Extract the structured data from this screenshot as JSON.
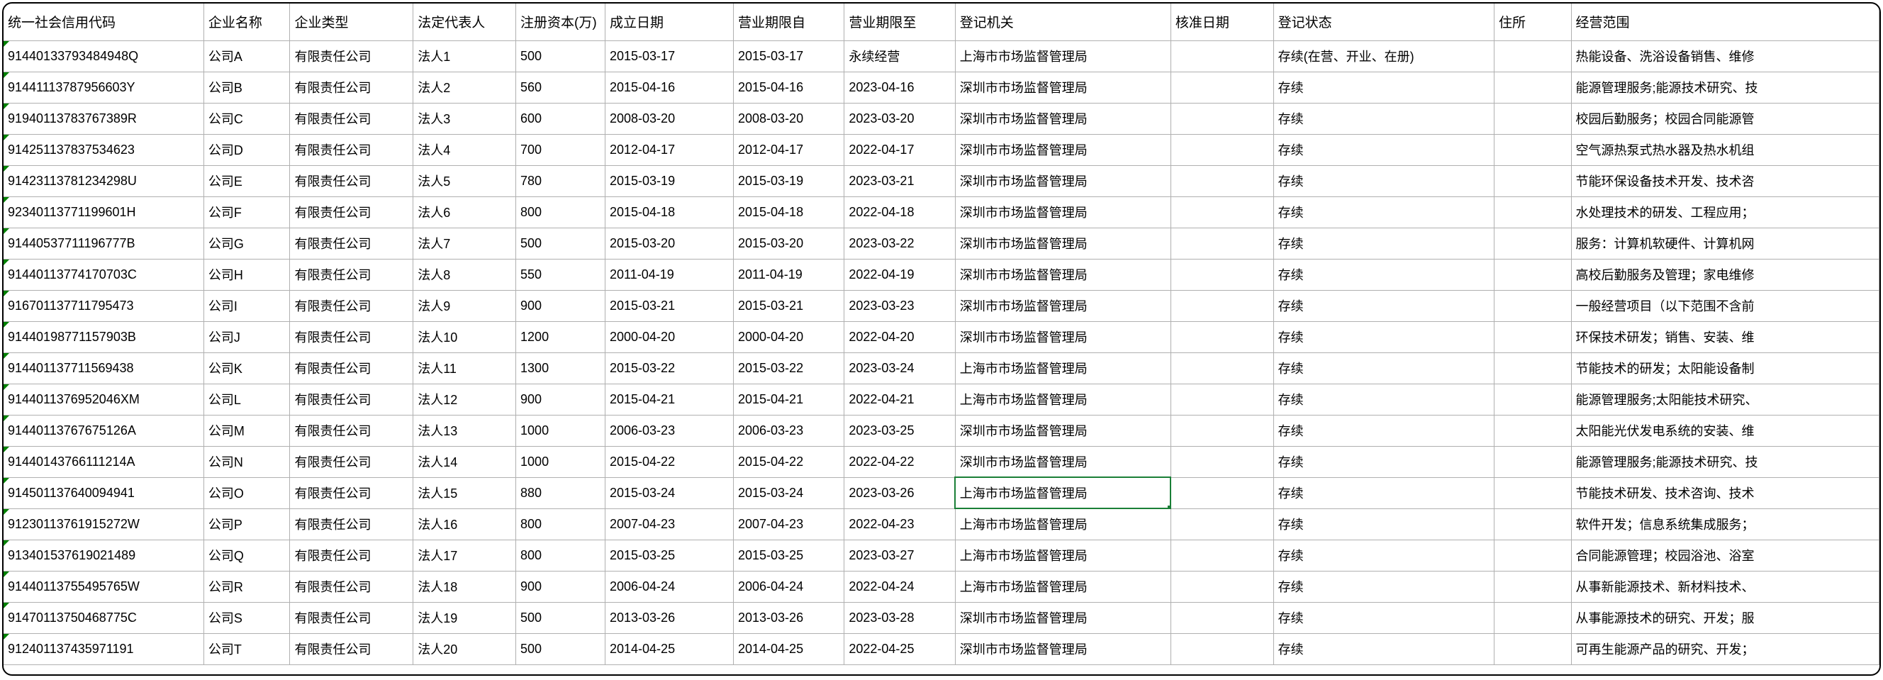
{
  "table": {
    "columns": [
      "统一社会信用代码",
      "企业名称",
      "企业类型",
      "法定代表人",
      "注册资本(万)",
      "成立日期",
      "营业期限自",
      "营业期限至",
      "登记机关",
      "核准日期",
      "登记状态",
      "住所",
      "经营范围"
    ],
    "green_triangle_rows": [
      0,
      1,
      2,
      3,
      4,
      5,
      6,
      7,
      8,
      9,
      10,
      11,
      12,
      13,
      14,
      15,
      16,
      17,
      18,
      19
    ],
    "selected_cell": {
      "row": 14,
      "col": 8
    },
    "rows": [
      [
        "91440133793484948Q",
        "公司A",
        "有限责任公司",
        "法人1",
        "500",
        "2015-03-17",
        "2015-03-17",
        "永续经营",
        "上海市市场监督管理局",
        "",
        "存续(在营、开业、在册)",
        "",
        "热能设备、洗浴设备销售、维修"
      ],
      [
        "91441113787956603Y",
        "公司B",
        "有限责任公司",
        "法人2",
        "560",
        "2015-04-16",
        "2015-04-16",
        "2023-04-16",
        "深圳市市场监督管理局",
        "",
        "存续",
        "",
        "能源管理服务;能源技术研究、技"
      ],
      [
        "91940113783767389R",
        "公司C",
        "有限责任公司",
        "法人3",
        "600",
        "2008-03-20",
        "2008-03-20",
        "2023-03-20",
        "深圳市市场监督管理局",
        "",
        "存续",
        "",
        "校园后勤服务；校园合同能源管"
      ],
      [
        "914251137837534623",
        "公司D",
        "有限责任公司",
        "法人4",
        "700",
        "2012-04-17",
        "2012-04-17",
        "2022-04-17",
        "深圳市市场监督管理局",
        "",
        "存续",
        "",
        "空气源热泵式热水器及热水机组"
      ],
      [
        "91423113781234298U",
        "公司E",
        "有限责任公司",
        "法人5",
        "780",
        "2015-03-19",
        "2015-03-19",
        "2023-03-21",
        "深圳市市场监督管理局",
        "",
        "存续",
        "",
        "节能环保设备技术开发、技术咨"
      ],
      [
        "92340113771199601H",
        "公司F",
        "有限责任公司",
        "法人6",
        "800",
        "2015-04-18",
        "2015-04-18",
        "2022-04-18",
        "深圳市市场监督管理局",
        "",
        "存续",
        "",
        "水处理技术的研发、工程应用；"
      ],
      [
        "91440537711196777B",
        "公司G",
        "有限责任公司",
        "法人7",
        "500",
        "2015-03-20",
        "2015-03-20",
        "2023-03-22",
        "深圳市市场监督管理局",
        "",
        "存续",
        "",
        "服务：计算机软硬件、计算机网"
      ],
      [
        "91440113774170703C",
        "公司H",
        "有限责任公司",
        "法人8",
        "550",
        "2011-04-19",
        "2011-04-19",
        "2022-04-19",
        "深圳市市场监督管理局",
        "",
        "存续",
        "",
        "高校后勤服务及管理；家电维修"
      ],
      [
        "916701137711795473",
        "公司I",
        "有限责任公司",
        "法人9",
        "900",
        "2015-03-21",
        "2015-03-21",
        "2023-03-23",
        "深圳市市场监督管理局",
        "",
        "存续",
        "",
        "一般经营项目（以下范围不含前"
      ],
      [
        "91440198771157903B",
        "公司J",
        "有限责任公司",
        "法人10",
        "1200",
        "2000-04-20",
        "2000-04-20",
        "2022-04-20",
        "深圳市市场监督管理局",
        "",
        "存续",
        "",
        "环保技术研发；销售、安装、维"
      ],
      [
        "914401137711569438",
        "公司K",
        "有限责任公司",
        "法人11",
        "1300",
        "2015-03-22",
        "2015-03-22",
        "2023-03-24",
        "上海市市场监督管理局",
        "",
        "存续",
        "",
        "节能技术的研发；太阳能设备制"
      ],
      [
        "9144011376952046XM",
        "公司L",
        "有限责任公司",
        "法人12",
        "900",
        "2015-04-21",
        "2015-04-21",
        "2022-04-21",
        "上海市市场监督管理局",
        "",
        "存续",
        "",
        "能源管理服务;太阳能技术研究、"
      ],
      [
        "91440113767675126A",
        "公司M",
        "有限责任公司",
        "法人13",
        "1000",
        "2006-03-23",
        "2006-03-23",
        "2023-03-25",
        "深圳市市场监督管理局",
        "",
        "存续",
        "",
        "太阳能光伏发电系统的安装、维"
      ],
      [
        "91440143766111214A",
        "公司N",
        "有限责任公司",
        "法人14",
        "1000",
        "2015-04-22",
        "2015-04-22",
        "2022-04-22",
        "深圳市市场监督管理局",
        "",
        "存续",
        "",
        "能源管理服务;能源技术研究、技"
      ],
      [
        "914501137640094941",
        "公司O",
        "有限责任公司",
        "法人15",
        "880",
        "2015-03-24",
        "2015-03-24",
        "2023-03-26",
        "上海市市场监督管理局",
        "",
        "存续",
        "",
        "节能技术研发、技术咨询、技术"
      ],
      [
        "91230113761915272W",
        "公司P",
        "有限责任公司",
        "法人16",
        "800",
        "2007-04-23",
        "2007-04-23",
        "2022-04-23",
        "上海市市场监督管理局",
        "",
        "存续",
        "",
        "软件开发；信息系统集成服务；"
      ],
      [
        "913401537619021489",
        "公司Q",
        "有限责任公司",
        "法人17",
        "800",
        "2015-03-25",
        "2015-03-25",
        "2023-03-27",
        "上海市市场监督管理局",
        "",
        "存续",
        "",
        "合同能源管理；校园浴池、浴室"
      ],
      [
        "91440113755495765W",
        "公司R",
        "有限责任公司",
        "法人18",
        "900",
        "2006-04-24",
        "2006-04-24",
        "2022-04-24",
        "上海市市场监督管理局",
        "",
        "存续",
        "",
        "从事新能源技术、新材料技术、"
      ],
      [
        "91470113750468775C",
        "公司S",
        "有限责任公司",
        "法人19",
        "500",
        "2013-03-26",
        "2013-03-26",
        "2023-03-28",
        "深圳市市场监督管理局",
        "",
        "存续",
        "",
        "从事能源技术的研究、开发；服"
      ],
      [
        "912401137435971191",
        "公司T",
        "有限责任公司",
        "法人20",
        "500",
        "2014-04-25",
        "2014-04-25",
        "2022-04-25",
        "深圳市市场监督管理局",
        "",
        "存续",
        "",
        "可再生能源产品的研究、开发；"
      ]
    ]
  }
}
